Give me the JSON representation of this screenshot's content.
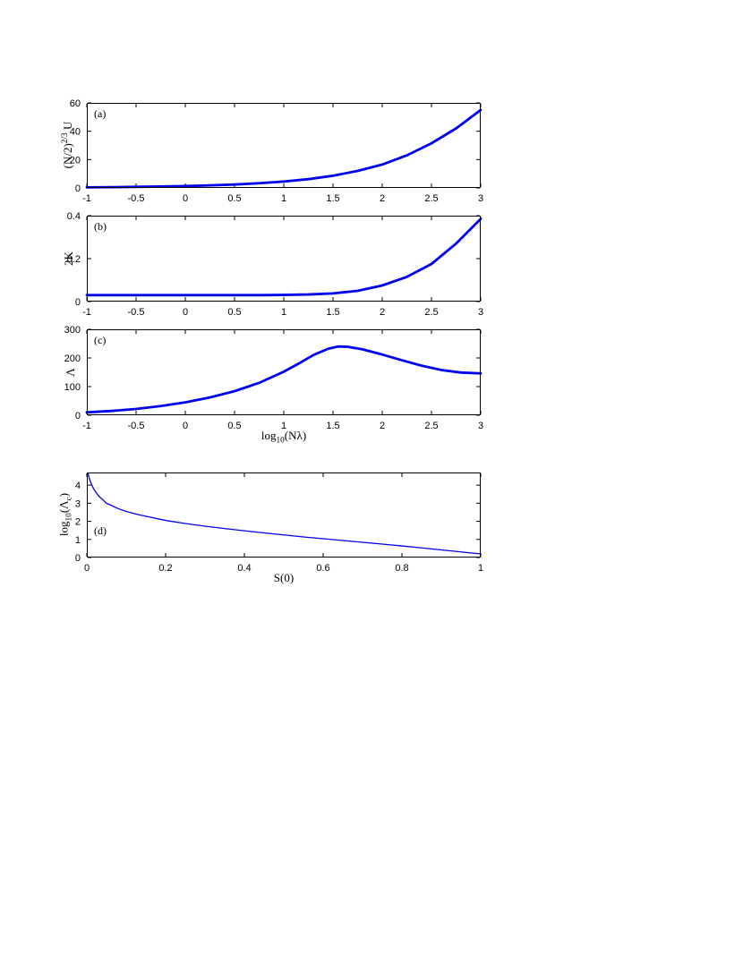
{
  "figure": {
    "description": "Four stacked line plots (a)-(d)"
  },
  "chart_data": [
    {
      "type": "line",
      "panel_label": "(a)",
      "ylabel_rich": [
        {
          "t": "(N/2)"
        },
        {
          "t": "2/3",
          "style": "sup"
        },
        {
          "t": " U"
        }
      ],
      "xlabel_rich": [],
      "xlim": [
        -1,
        3
      ],
      "ylim": [
        0,
        60
      ],
      "xtick_vals": [
        -1,
        -0.5,
        0,
        0.5,
        1,
        1.5,
        2,
        2.5,
        3
      ],
      "xtick_labels": [
        "-1",
        "-0.5",
        "0",
        "0.5",
        "1",
        "1.5",
        "2",
        "2.5",
        "3"
      ],
      "ytick_vals": [
        0,
        20,
        40,
        60
      ],
      "ytick_labels": [
        "0",
        "20",
        "40",
        "60"
      ],
      "line_color": "#0000EE",
      "line_width": 2.8,
      "axis_color": "#000000",
      "points": [
        [
          -1,
          0.4
        ],
        [
          -0.75,
          0.55
        ],
        [
          -0.5,
          0.75
        ],
        [
          -0.25,
          1.0
        ],
        [
          0,
          1.3
        ],
        [
          0.25,
          1.8
        ],
        [
          0.5,
          2.4
        ],
        [
          0.75,
          3.3
        ],
        [
          1,
          4.5
        ],
        [
          1.25,
          6.2
        ],
        [
          1.5,
          8.6
        ],
        [
          1.75,
          12
        ],
        [
          2,
          16.5
        ],
        [
          2.25,
          23
        ],
        [
          2.5,
          31.5
        ],
        [
          2.75,
          42
        ],
        [
          3,
          55
        ]
      ]
    },
    {
      "type": "line",
      "panel_label": "(b)",
      "ylabel_rich": [
        {
          "t": "2K"
        }
      ],
      "xlabel_rich": [],
      "xlim": [
        -1,
        3
      ],
      "ylim": [
        0,
        0.4
      ],
      "xtick_vals": [
        -1,
        -0.5,
        0,
        0.5,
        1,
        1.5,
        2,
        2.5,
        3
      ],
      "xtick_labels": [
        "-1",
        "-0.5",
        "0",
        "0.5",
        "1",
        "1.5",
        "2",
        "2.5",
        "3"
      ],
      "ytick_vals": [
        0,
        0.2,
        0.4
      ],
      "ytick_labels": [
        "0",
        "0.2",
        "0.4"
      ],
      "line_color": "#0000EE",
      "line_width": 2.8,
      "axis_color": "#000000",
      "points": [
        [
          -1,
          0.03
        ],
        [
          -0.5,
          0.03
        ],
        [
          0,
          0.03
        ],
        [
          0.5,
          0.03
        ],
        [
          0.75,
          0.03
        ],
        [
          1,
          0.031
        ],
        [
          1.25,
          0.033
        ],
        [
          1.5,
          0.038
        ],
        [
          1.75,
          0.05
        ],
        [
          2,
          0.075
        ],
        [
          2.25,
          0.115
        ],
        [
          2.5,
          0.175
        ],
        [
          2.75,
          0.27
        ],
        [
          3,
          0.385
        ]
      ]
    },
    {
      "type": "line",
      "panel_label": "(c)",
      "ylabel_rich": [
        {
          "t": "Λ"
        }
      ],
      "xlabel_rich": [
        {
          "t": "log"
        },
        {
          "t": "10",
          "style": "sub"
        },
        {
          "t": "(Nλ)"
        }
      ],
      "xlim": [
        -1,
        3
      ],
      "ylim": [
        0,
        300
      ],
      "xtick_vals": [
        -1,
        -0.5,
        0,
        0.5,
        1,
        1.5,
        2,
        2.5,
        3
      ],
      "xtick_labels": [
        "-1",
        "-0.5",
        "0",
        "0.5",
        "1",
        "1.5",
        "2",
        "2.5",
        "3"
      ],
      "ytick_vals": [
        0,
        100,
        200,
        300
      ],
      "ytick_labels": [
        "0",
        "100",
        "200",
        "300"
      ],
      "line_color": "#0000EE",
      "line_width": 2.8,
      "axis_color": "#000000",
      "points": [
        [
          -1,
          10
        ],
        [
          -0.75,
          15
        ],
        [
          -0.5,
          22
        ],
        [
          -0.25,
          32
        ],
        [
          0,
          45
        ],
        [
          0.25,
          62
        ],
        [
          0.5,
          84
        ],
        [
          0.75,
          113
        ],
        [
          1,
          152
        ],
        [
          1.15,
          180
        ],
        [
          1.3,
          210
        ],
        [
          1.45,
          232
        ],
        [
          1.55,
          240
        ],
        [
          1.65,
          239
        ],
        [
          1.8,
          230
        ],
        [
          2,
          212
        ],
        [
          2.2,
          192
        ],
        [
          2.4,
          173
        ],
        [
          2.6,
          158
        ],
        [
          2.8,
          149
        ],
        [
          3,
          146
        ]
      ]
    },
    {
      "type": "line",
      "panel_label": "(d)",
      "ylabel_rich": [
        {
          "t": "log"
        },
        {
          "t": "10",
          "style": "sub"
        },
        {
          "t": "(Λ"
        },
        {
          "t": "c",
          "style": "sub"
        },
        {
          "t": ")"
        }
      ],
      "xlabel_rich": [
        {
          "t": "S(0)"
        }
      ],
      "xlim": [
        0,
        1
      ],
      "ylim": [
        0,
        4.7
      ],
      "xtick_vals": [
        0,
        0.2,
        0.4,
        0.6,
        0.8,
        1
      ],
      "xtick_labels": [
        "0",
        "0.2",
        "0.4",
        "0.6",
        "0.8",
        "1"
      ],
      "ytick_vals": [
        0,
        1,
        2,
        3,
        4
      ],
      "ytick_labels": [
        "0",
        "1",
        "2",
        "3",
        "4"
      ],
      "line_color": "#0000EE",
      "line_width": 1.3,
      "axis_color": "#000000",
      "points": [
        [
          0.003,
          4.65
        ],
        [
          0.006,
          4.4
        ],
        [
          0.01,
          4.15
        ],
        [
          0.015,
          3.9
        ],
        [
          0.02,
          3.7
        ],
        [
          0.03,
          3.4
        ],
        [
          0.04,
          3.2
        ],
        [
          0.05,
          3.0
        ],
        [
          0.065,
          2.85
        ],
        [
          0.08,
          2.7
        ],
        [
          0.1,
          2.55
        ],
        [
          0.125,
          2.4
        ],
        [
          0.15,
          2.28
        ],
        [
          0.2,
          2.05
        ],
        [
          0.25,
          1.88
        ],
        [
          0.3,
          1.73
        ],
        [
          0.35,
          1.6
        ],
        [
          0.4,
          1.48
        ],
        [
          0.45,
          1.36
        ],
        [
          0.5,
          1.25
        ],
        [
          0.55,
          1.14
        ],
        [
          0.6,
          1.04
        ],
        [
          0.65,
          0.94
        ],
        [
          0.7,
          0.84
        ],
        [
          0.75,
          0.74
        ],
        [
          0.8,
          0.64
        ],
        [
          0.85,
          0.53
        ],
        [
          0.9,
          0.42
        ],
        [
          0.95,
          0.31
        ],
        [
          1,
          0.2
        ]
      ]
    }
  ]
}
